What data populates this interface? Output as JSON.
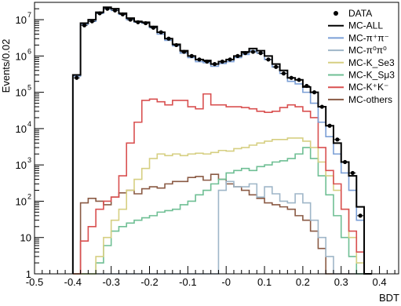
{
  "chart_data": {
    "type": "histogram-step",
    "xlabel": "BDT",
    "ylabel": "Events/0.02",
    "y_scale": "log",
    "xlim": [
      -0.5,
      0.45
    ],
    "ylim": [
      1,
      30000000
    ],
    "x_ticks": [
      {
        "value": -0.5,
        "label": "-0.5"
      },
      {
        "value": -0.4,
        "label": "-0.4"
      },
      {
        "value": -0.3,
        "label": "-0.3"
      },
      {
        "value": -0.2,
        "label": "-0.2"
      },
      {
        "value": -0.1,
        "label": "-0.1"
      },
      {
        "value": 0.0,
        "label": "-0"
      },
      {
        "value": 0.1,
        "label": "0.1"
      },
      {
        "value": 0.2,
        "label": "0.2"
      },
      {
        "value": 0.3,
        "label": "0.3"
      },
      {
        "value": 0.4,
        "label": "0.4"
      }
    ],
    "y_ticks": [
      {
        "value": 1,
        "label": "1"
      },
      {
        "value": 10,
        "label": "10"
      },
      {
        "value": 100,
        "label": "10",
        "exp": "2"
      },
      {
        "value": 1000,
        "label": "10",
        "exp": "3"
      },
      {
        "value": 10000,
        "label": "10",
        "exp": "4"
      },
      {
        "value": 100000,
        "label": "10",
        "exp": "5"
      },
      {
        "value": 1000000,
        "label": "10",
        "exp": "6"
      },
      {
        "value": 10000000,
        "label": "10",
        "exp": "7"
      }
    ],
    "bin_edges_start": -0.4,
    "bin_width": 0.02,
    "legend": [
      {
        "key": "data",
        "label": "DATA",
        "color": "#000000",
        "style": "marker"
      },
      {
        "key": "all",
        "label": "MC-ALL",
        "color": "#000000",
        "style": "line"
      },
      {
        "key": "pipi",
        "label": "MC-π⁺π⁻",
        "color": "#7b9fd6",
        "style": "line"
      },
      {
        "key": "pi0pi0",
        "label": "MC-π⁰π⁰",
        "color": "#9fb6c8",
        "style": "line"
      },
      {
        "key": "ke3",
        "label": "MC-K_Se3",
        "color": "#d6cf82",
        "style": "line"
      },
      {
        "key": "kmu3",
        "label": "MC-K_Sμ3",
        "color": "#6fbf94",
        "style": "line"
      },
      {
        "key": "kk",
        "label": "MC-K⁺K⁻",
        "color": "#d95050",
        "style": "line"
      },
      {
        "key": "others",
        "label": "MC-others",
        "color": "#8a5a44",
        "style": "line"
      }
    ],
    "series": [
      {
        "key": "all",
        "color": "#000000",
        "width": 2,
        "values": [
          300000,
          8000000,
          10000000,
          16000000,
          22000000,
          20000000,
          15000000,
          11000000,
          9000000,
          8500000,
          6500000,
          4500000,
          3000000,
          2100000,
          1400000,
          1000000,
          800000,
          750000,
          600000,
          700000,
          800000,
          1000000,
          1300000,
          1600000,
          1400000,
          1000000,
          600000,
          400000,
          250000,
          220000,
          140000,
          100000,
          40000,
          12000,
          4000,
          1200,
          500,
          70,
          1
        ]
      },
      {
        "key": "pipi",
        "color": "#7b9fd6",
        "width": 1.6,
        "values": [
          280000,
          7500000,
          9000000,
          15000000,
          20000000,
          18000000,
          14000000,
          10000000,
          8500000,
          8000000,
          6000000,
          4000000,
          2700000,
          1900000,
          1200000,
          900000,
          700000,
          650000,
          520000,
          620000,
          700000,
          900000,
          1100000,
          1400000,
          1200000,
          800000,
          500000,
          330000,
          200000,
          170000,
          100000,
          50000,
          15000,
          6000,
          2000,
          600,
          200,
          30,
          1
        ]
      },
      {
        "key": "kk",
        "color": "#d95050",
        "width": 1.6,
        "values": [
          1,
          8,
          20,
          60,
          100,
          130,
          500,
          4000,
          15000,
          60000,
          65000,
          55000,
          45000,
          60000,
          60000,
          40000,
          35000,
          90000,
          45000,
          45000,
          40000,
          40000,
          38000,
          35000,
          30000,
          28000,
          30000,
          38000,
          45000,
          40000,
          30000,
          20000,
          3000,
          700,
          300,
          60,
          15,
          4,
          1
        ]
      },
      {
        "key": "ke3",
        "color": "#d6cf82",
        "width": 1.6,
        "values": [
          1,
          1,
          1,
          3,
          10,
          30,
          60,
          200,
          400,
          800,
          1500,
          2000,
          1800,
          2000,
          1800,
          2000,
          2100,
          2000,
          2200,
          2500,
          2400,
          2800,
          3000,
          3500,
          4000,
          4500,
          5000,
          5000,
          5500,
          5500,
          4500,
          3000,
          1200,
          500,
          200,
          60,
          10,
          2,
          1
        ]
      },
      {
        "key": "kmu3",
        "color": "#6fbf94",
        "width": 1.6,
        "values": [
          1,
          1,
          1,
          2,
          6,
          15,
          20,
          25,
          30,
          35,
          40,
          50,
          55,
          60,
          80,
          100,
          150,
          200,
          300,
          400,
          600,
          700,
          800,
          700,
          900,
          1000,
          1200,
          1300,
          1500,
          2000,
          3000,
          1500,
          500,
          150,
          40,
          10,
          3,
          1,
          1
        ]
      },
      {
        "key": "pi0pi0",
        "color": "#9fb6c8",
        "width": 1.6,
        "values": [
          1,
          1,
          1,
          1,
          1,
          1,
          1,
          1,
          1,
          1,
          1,
          1,
          1,
          1,
          1,
          1,
          1,
          1,
          1,
          200,
          350,
          250,
          250,
          300,
          130,
          250,
          160,
          100,
          90,
          160,
          90,
          30,
          10,
          3,
          1,
          1,
          1,
          1,
          1
        ]
      },
      {
        "key": "others",
        "color": "#8a5a44",
        "width": 1.6,
        "values": [
          1,
          90,
          120,
          100,
          80,
          130,
          170,
          200,
          160,
          220,
          250,
          230,
          300,
          350,
          350,
          450,
          480,
          380,
          550,
          400,
          300,
          250,
          200,
          150,
          120,
          90,
          80,
          70,
          60,
          40,
          30,
          15,
          5,
          1,
          1,
          1,
          1,
          1,
          1
        ]
      }
    ],
    "data_points": {
      "x": [
        -0.39,
        -0.37,
        -0.35,
        -0.33,
        -0.31,
        -0.29,
        -0.27,
        -0.25,
        -0.23,
        -0.21,
        -0.19,
        -0.17,
        -0.15,
        -0.13,
        -0.11,
        -0.09,
        -0.07,
        -0.05,
        -0.03,
        -0.01,
        0.01,
        0.03,
        0.05,
        0.07,
        0.09,
        0.11,
        0.13,
        0.15,
        0.17,
        0.19,
        0.21,
        0.23,
        0.25,
        0.27,
        0.29,
        0.31,
        0.33,
        0.35
      ],
      "y": [
        250000,
        7000000,
        9000000,
        15000000,
        20000000,
        18000000,
        14000000,
        10000000,
        8500000,
        8000000,
        6000000,
        4500000,
        3000000,
        2000000,
        1300000,
        1000000,
        800000,
        700000,
        600000,
        700000,
        800000,
        1000000,
        1200000,
        1300000,
        1200000,
        800000,
        500000,
        330000,
        250000,
        220000,
        150000,
        100000,
        40000,
        12000,
        5000,
        1200,
        600,
        40
      ]
    }
  }
}
